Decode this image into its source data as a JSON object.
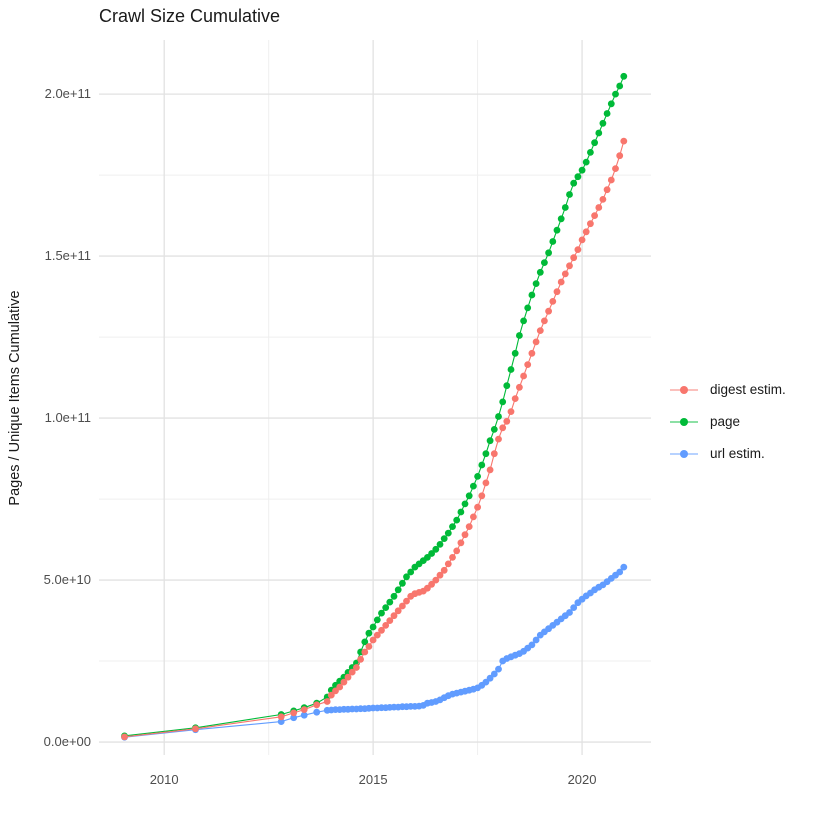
{
  "title": "Crawl Size Cumulative",
  "y_axis": {
    "title": "Pages / Unique Items Cumulative",
    "tick_labels": [
      "0.0e+00",
      "5.0e+10",
      "1.0e+11",
      "1.5e+11",
      "2.0e+11"
    ]
  },
  "x_axis": {
    "tick_labels": [
      "2010",
      "2015",
      "2020"
    ]
  },
  "legend": {
    "items": [
      {
        "label": "digest estim.",
        "color": "#F8766D"
      },
      {
        "label": "page",
        "color": "#00BA38"
      },
      {
        "label": "url estim.",
        "color": "#619CFF"
      }
    ]
  },
  "chart_data": {
    "type": "scatter",
    "title": "Crawl Size Cumulative",
    "xlabel": "",
    "ylabel": "Pages / Unique Items Cumulative",
    "xlim": [
      2008.44,
      2021.65
    ],
    "ylim": [
      -4000000000.0,
      216700000000.0
    ],
    "x_ticks": [
      2010,
      2015,
      2020
    ],
    "x_minor_ticks": [
      2012.5,
      2017.5
    ],
    "x_tick_labels": [
      "2010",
      "2015",
      "2020"
    ],
    "y_ticks": [
      0,
      50000000000.0,
      100000000000.0,
      150000000000.0,
      200000000000.0
    ],
    "y_minor_ticks": [
      25000000000.0,
      75000000000.0,
      125000000000.0,
      175000000000.0
    ],
    "y_tick_labels": [
      "0.0e+00",
      "5.0e+10",
      "1.0e+11",
      "1.5e+11",
      "2.0e+11"
    ],
    "grid": true,
    "legend_position": "right",
    "marker": "point-with-line",
    "series": [
      {
        "name": "digest estim.",
        "color": "#F8766D",
        "points": [
          [
            2009.05,
            1600000000.0
          ],
          [
            2010.75,
            4100000000.0
          ],
          [
            2012.8,
            7800000000.0
          ],
          [
            2013.1,
            9000000000.0
          ],
          [
            2013.35,
            10000000000.0
          ],
          [
            2013.65,
            11500000000.0
          ],
          [
            2013.9,
            12500000000.0
          ],
          [
            2014.0,
            14500000000.0
          ],
          [
            2014.1,
            15800000000.0
          ],
          [
            2014.2,
            17000000000.0
          ],
          [
            2014.3,
            18500000000.0
          ],
          [
            2014.4,
            20000000000.0
          ],
          [
            2014.5,
            21600000000.0
          ],
          [
            2014.6,
            23000000000.0
          ],
          [
            2014.7,
            25500000000.0
          ],
          [
            2014.8,
            27800000000.0
          ],
          [
            2014.9,
            29500000000.0
          ],
          [
            2015.0,
            31500000000.0
          ],
          [
            2015.1,
            33000000000.0
          ],
          [
            2015.2,
            34500000000.0
          ],
          [
            2015.3,
            36000000000.0
          ],
          [
            2015.4,
            37500000000.0
          ],
          [
            2015.5,
            39000000000.0
          ],
          [
            2015.6,
            40500000000.0
          ],
          [
            2015.7,
            42000000000.0
          ],
          [
            2015.8,
            43500000000.0
          ],
          [
            2015.9,
            45000000000.0
          ],
          [
            2016.0,
            45800000000.0
          ],
          [
            2016.1,
            46200000000.0
          ],
          [
            2016.2,
            46600000000.0
          ],
          [
            2016.3,
            47500000000.0
          ],
          [
            2016.4,
            48700000000.0
          ],
          [
            2016.5,
            50000000000.0
          ],
          [
            2016.6,
            51500000000.0
          ],
          [
            2016.7,
            53000000000.0
          ],
          [
            2016.8,
            55000000000.0
          ],
          [
            2016.9,
            57000000000.0
          ],
          [
            2017.0,
            59000000000.0
          ],
          [
            2017.1,
            61500000000.0
          ],
          [
            2017.2,
            64000000000.0
          ],
          [
            2017.3,
            66500000000.0
          ],
          [
            2017.4,
            69500000000.0
          ],
          [
            2017.5,
            72500000000.0
          ],
          [
            2017.6,
            76000000000.0
          ],
          [
            2017.7,
            80000000000.0
          ],
          [
            2017.8,
            84000000000.0
          ],
          [
            2017.9,
            89000000000.0
          ],
          [
            2018.0,
            93500000000.0
          ],
          [
            2018.1,
            97000000000.0
          ],
          [
            2018.2,
            99000000000.0
          ],
          [
            2018.3,
            102000000000.0
          ],
          [
            2018.4,
            106000000000.0
          ],
          [
            2018.5,
            109500000000.0
          ],
          [
            2018.6,
            113000000000.0
          ],
          [
            2018.7,
            116500000000.0
          ],
          [
            2018.8,
            120000000000.0
          ],
          [
            2018.9,
            123500000000.0
          ],
          [
            2019.0,
            127000000000.0
          ],
          [
            2019.1,
            130000000000.0
          ],
          [
            2019.2,
            133000000000.0
          ],
          [
            2019.3,
            136000000000.0
          ],
          [
            2019.4,
            139000000000.0
          ],
          [
            2019.5,
            142000000000.0
          ],
          [
            2019.6,
            144500000000.0
          ],
          [
            2019.7,
            147000000000.0
          ],
          [
            2019.8,
            149500000000.0
          ],
          [
            2019.9,
            152000000000.0
          ],
          [
            2020.0,
            155000000000.0
          ],
          [
            2020.1,
            157500000000.0
          ],
          [
            2020.2,
            160000000000.0
          ],
          [
            2020.3,
            162500000000.0
          ],
          [
            2020.4,
            165000000000.0
          ],
          [
            2020.5,
            167500000000.0
          ],
          [
            2020.6,
            170500000000.0
          ],
          [
            2020.7,
            173500000000.0
          ],
          [
            2020.8,
            177000000000.0
          ],
          [
            2020.9,
            181000000000.0
          ],
          [
            2021.0,
            185500000000.0
          ]
        ]
      },
      {
        "name": "page",
        "color": "#00BA38",
        "points": [
          [
            2009.05,
            1900000000.0
          ],
          [
            2010.75,
            4400000000.0
          ],
          [
            2012.8,
            8500000000.0
          ],
          [
            2013.1,
            9600000000.0
          ],
          [
            2013.35,
            10600000000.0
          ],
          [
            2013.65,
            12000000000.0
          ],
          [
            2013.9,
            13900000000.0
          ],
          [
            2014.0,
            16000000000.0
          ],
          [
            2014.1,
            17500000000.0
          ],
          [
            2014.2,
            18800000000.0
          ],
          [
            2014.3,
            20000000000.0
          ],
          [
            2014.4,
            21500000000.0
          ],
          [
            2014.5,
            23000000000.0
          ],
          [
            2014.6,
            24400000000.0
          ],
          [
            2014.7,
            27800000000.0
          ],
          [
            2014.8,
            30900000000.0
          ],
          [
            2014.9,
            33600000000.0
          ],
          [
            2015.0,
            35500000000.0
          ],
          [
            2015.1,
            37700000000.0
          ],
          [
            2015.2,
            39800000000.0
          ],
          [
            2015.3,
            41500000000.0
          ],
          [
            2015.4,
            43200000000.0
          ],
          [
            2015.5,
            45000000000.0
          ],
          [
            2015.6,
            47000000000.0
          ],
          [
            2015.7,
            49000000000.0
          ],
          [
            2015.8,
            51000000000.0
          ],
          [
            2015.9,
            52500000000.0
          ],
          [
            2016.0,
            54000000000.0
          ],
          [
            2016.1,
            55000000000.0
          ],
          [
            2016.2,
            56000000000.0
          ],
          [
            2016.3,
            57000000000.0
          ],
          [
            2016.4,
            58200000000.0
          ],
          [
            2016.5,
            59500000000.0
          ],
          [
            2016.6,
            61000000000.0
          ],
          [
            2016.7,
            62800000000.0
          ],
          [
            2016.8,
            64500000000.0
          ],
          [
            2016.9,
            66500000000.0
          ],
          [
            2017.0,
            68500000000.0
          ],
          [
            2017.1,
            71000000000.0
          ],
          [
            2017.2,
            73500000000.0
          ],
          [
            2017.3,
            76000000000.0
          ],
          [
            2017.4,
            79000000000.0
          ],
          [
            2017.5,
            82000000000.0
          ],
          [
            2017.6,
            85500000000.0
          ],
          [
            2017.7,
            89000000000.0
          ],
          [
            2017.8,
            93000000000.0
          ],
          [
            2017.9,
            96500000000.0
          ],
          [
            2018.0,
            100500000000.0
          ],
          [
            2018.1,
            105000000000.0
          ],
          [
            2018.2,
            110000000000.0
          ],
          [
            2018.3,
            115000000000.0
          ],
          [
            2018.4,
            120000000000.0
          ],
          [
            2018.5,
            125500000000.0
          ],
          [
            2018.6,
            130000000000.0
          ],
          [
            2018.7,
            134000000000.0
          ],
          [
            2018.8,
            138000000000.0
          ],
          [
            2018.9,
            141500000000.0
          ],
          [
            2019.0,
            145000000000.0
          ],
          [
            2019.1,
            148000000000.0
          ],
          [
            2019.2,
            151000000000.0
          ],
          [
            2019.3,
            154500000000.0
          ],
          [
            2019.4,
            158000000000.0
          ],
          [
            2019.5,
            161500000000.0
          ],
          [
            2019.6,
            165000000000.0
          ],
          [
            2019.7,
            169000000000.0
          ],
          [
            2019.8,
            172500000000.0
          ],
          [
            2019.9,
            174500000000.0
          ],
          [
            2020.0,
            176500000000.0
          ],
          [
            2020.1,
            179000000000.0
          ],
          [
            2020.2,
            182000000000.0
          ],
          [
            2020.3,
            185000000000.0
          ],
          [
            2020.4,
            188000000000.0
          ],
          [
            2020.5,
            191000000000.0
          ],
          [
            2020.6,
            194000000000.0
          ],
          [
            2020.7,
            197000000000.0
          ],
          [
            2020.8,
            200000000000.0
          ],
          [
            2020.9,
            202500000000.0
          ],
          [
            2021.0,
            205500000000.0
          ]
        ]
      },
      {
        "name": "url estim.",
        "color": "#619CFF",
        "points": [
          [
            2009.05,
            1500000000.0
          ],
          [
            2010.75,
            3800000000.0
          ],
          [
            2012.8,
            6300000000.0
          ],
          [
            2013.1,
            7500000000.0
          ],
          [
            2013.35,
            8300000000.0
          ],
          [
            2013.65,
            9200000000.0
          ],
          [
            2013.9,
            9800000000.0
          ],
          [
            2014.0,
            9900000000.0
          ],
          [
            2014.1,
            10000000000.0
          ],
          [
            2014.2,
            10000000000.0
          ],
          [
            2014.3,
            10100000000.0
          ],
          [
            2014.4,
            10100000000.0
          ],
          [
            2014.5,
            10200000000.0
          ],
          [
            2014.6,
            10200000000.0
          ],
          [
            2014.7,
            10300000000.0
          ],
          [
            2014.8,
            10300000000.0
          ],
          [
            2014.9,
            10400000000.0
          ],
          [
            2015.0,
            10500000000.0
          ],
          [
            2015.1,
            10500000000.0
          ],
          [
            2015.2,
            10600000000.0
          ],
          [
            2015.3,
            10600000000.0
          ],
          [
            2015.4,
            10700000000.0
          ],
          [
            2015.5,
            10800000000.0
          ],
          [
            2015.6,
            10800000000.0
          ],
          [
            2015.7,
            10900000000.0
          ],
          [
            2015.8,
            10900000000.0
          ],
          [
            2015.9,
            11000000000.0
          ],
          [
            2016.0,
            11000000000.0
          ],
          [
            2016.1,
            11100000000.0
          ],
          [
            2016.2,
            11300000000.0
          ],
          [
            2016.3,
            12000000000.0
          ],
          [
            2016.4,
            12200000000.0
          ],
          [
            2016.5,
            12500000000.0
          ],
          [
            2016.6,
            13000000000.0
          ],
          [
            2016.7,
            13700000000.0
          ],
          [
            2016.8,
            14300000000.0
          ],
          [
            2016.9,
            14800000000.0
          ],
          [
            2017.0,
            15100000000.0
          ],
          [
            2017.1,
            15400000000.0
          ],
          [
            2017.2,
            15700000000.0
          ],
          [
            2017.3,
            16000000000.0
          ],
          [
            2017.4,
            16300000000.0
          ],
          [
            2017.5,
            16700000000.0
          ],
          [
            2017.6,
            17500000000.0
          ],
          [
            2017.7,
            18500000000.0
          ],
          [
            2017.8,
            19700000000.0
          ],
          [
            2017.9,
            21000000000.0
          ],
          [
            2018.0,
            22500000000.0
          ],
          [
            2018.1,
            25000000000.0
          ],
          [
            2018.2,
            25800000000.0
          ],
          [
            2018.3,
            26300000000.0
          ],
          [
            2018.4,
            26800000000.0
          ],
          [
            2018.5,
            27300000000.0
          ],
          [
            2018.6,
            28000000000.0
          ],
          [
            2018.7,
            29000000000.0
          ],
          [
            2018.8,
            30000000000.0
          ],
          [
            2018.9,
            31500000000.0
          ],
          [
            2019.0,
            33000000000.0
          ],
          [
            2019.1,
            34000000000.0
          ],
          [
            2019.2,
            35000000000.0
          ],
          [
            2019.3,
            36000000000.0
          ],
          [
            2019.4,
            37000000000.0
          ],
          [
            2019.5,
            38000000000.0
          ],
          [
            2019.6,
            39000000000.0
          ],
          [
            2019.7,
            40000000000.0
          ],
          [
            2019.8,
            41500000000.0
          ],
          [
            2019.9,
            43000000000.0
          ],
          [
            2020.0,
            44100000000.0
          ],
          [
            2020.1,
            45100000000.0
          ],
          [
            2020.2,
            46000000000.0
          ],
          [
            2020.3,
            47000000000.0
          ],
          [
            2020.4,
            47800000000.0
          ],
          [
            2020.5,
            48500000000.0
          ],
          [
            2020.6,
            49500000000.0
          ],
          [
            2020.7,
            50500000000.0
          ],
          [
            2020.8,
            51500000000.0
          ],
          [
            2020.9,
            52500000000.0
          ],
          [
            2021.0,
            54000000000.0
          ]
        ]
      }
    ]
  }
}
